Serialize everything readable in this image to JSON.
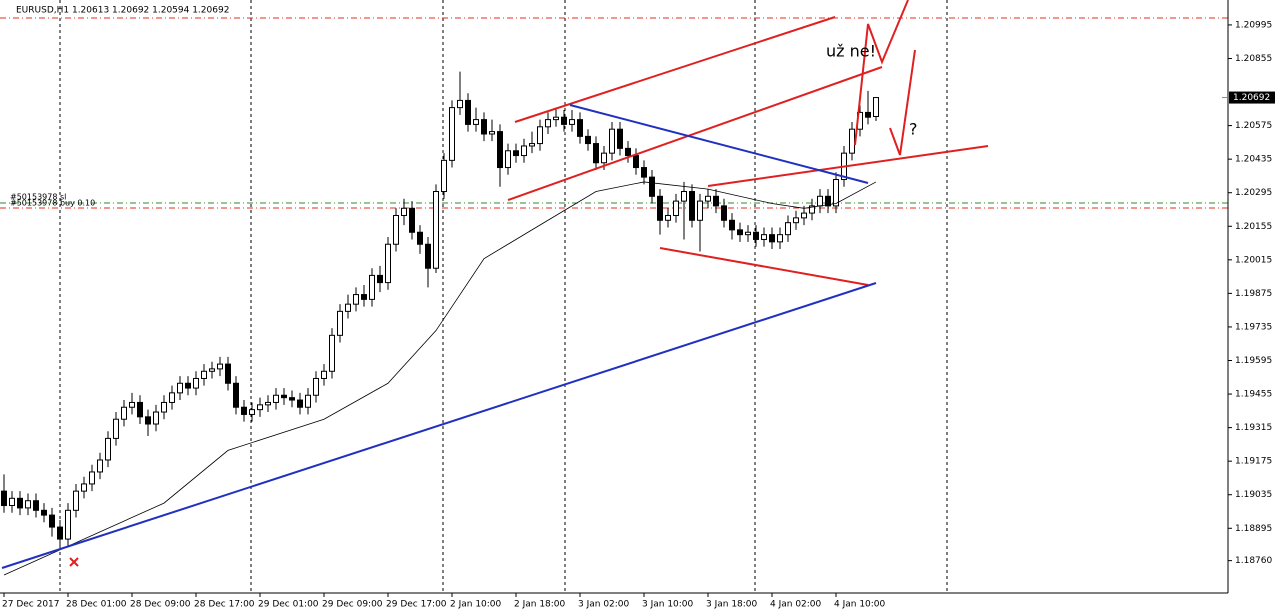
{
  "chart_data": {
    "type": "candlestick",
    "title": "EURUSD,H1  1.20613 1.20692 1.20594 1.20692",
    "categories": [
      "27 Dec 2017",
      null,
      null,
      null,
      null,
      null,
      null,
      null,
      "28 Dec 01:00",
      null,
      null,
      null,
      null,
      null,
      null,
      null,
      "28 Dec 09:00",
      null,
      null,
      null,
      null,
      null,
      null,
      null,
      "28 Dec 17:00",
      null,
      null,
      null,
      null,
      null,
      null,
      null,
      "29 Dec 01:00",
      null,
      null,
      null,
      null,
      null,
      null,
      null,
      "29 Dec 09:00",
      null,
      null,
      null,
      null,
      null,
      null,
      null,
      "29 Dec 17:00",
      null,
      null,
      null,
      null,
      null,
      null,
      null,
      "2 Jan 10:00",
      null,
      null,
      null,
      null,
      null,
      null,
      null,
      "2 Jan 18:00",
      null,
      null,
      null,
      null,
      null,
      null,
      null,
      "3 Jan 02:00",
      null,
      null,
      null,
      null,
      null,
      null,
      null,
      "3 Jan 10:00",
      null,
      null,
      null,
      null,
      null,
      null,
      null,
      "3 Jan 18:00",
      null,
      null,
      null,
      null,
      null,
      null,
      null,
      "4 Jan 02:00",
      null,
      null,
      null,
      null,
      null,
      null,
      null,
      "4 Jan 10:00",
      null,
      null,
      null,
      null,
      null
    ],
    "open": [
      1.1905,
      1.1899,
      1.1902,
      1.1898,
      1.1901,
      1.1897,
      1.1895,
      1.189,
      1.1885,
      1.1897,
      1.1905,
      1.1908,
      1.1913,
      1.1918,
      1.1927,
      1.1935,
      1.194,
      1.1942,
      1.1936,
      1.1933,
      1.1938,
      1.1942,
      1.1946,
      1.195,
      1.1948,
      1.1952,
      1.1955,
      1.1956,
      1.1958,
      1.195,
      1.194,
      1.1937,
      1.1939,
      1.1941,
      1.1942,
      1.1945,
      1.1944,
      1.1943,
      1.194,
      1.1945,
      1.1952,
      1.1955,
      1.197,
      1.198,
      1.1983,
      1.1987,
      1.1985,
      1.1995,
      1.1992,
      1.2008,
      1.202,
      1.2023,
      1.2013,
      1.2008,
      1.1998,
      1.203,
      1.2043,
      1.2065,
      1.2068,
      1.2058,
      1.206,
      1.2054,
      1.2055,
      1.204,
      1.2047,
      1.2045,
      1.2049,
      1.205,
      1.2057,
      1.206,
      1.2061,
      1.2058,
      1.206,
      1.2053,
      1.205,
      1.2042,
      1.2046,
      1.2056,
      1.2048,
      1.2045,
      1.204,
      1.2036,
      1.2028,
      1.2018,
      1.202,
      1.2026,
      1.203,
      1.2018,
      1.2026,
      1.2028,
      1.2024,
      1.2018,
      1.2014,
      1.2012,
      1.2013,
      1.201,
      1.2012,
      1.2009,
      1.2012,
      1.2017,
      1.2019,
      1.2021,
      1.2024,
      1.2028,
      1.2024,
      1.2035,
      1.2046,
      1.2056,
      1.2063,
      1.20613
    ],
    "high": [
      1.1912,
      1.1905,
      1.1905,
      1.1904,
      1.1904,
      1.19,
      1.1898,
      1.1893,
      1.19,
      1.1908,
      1.1911,
      1.1916,
      1.1921,
      1.193,
      1.1938,
      1.1943,
      1.1946,
      1.1945,
      1.1939,
      1.1941,
      1.1945,
      1.1949,
      1.1953,
      1.1953,
      1.1955,
      1.1958,
      1.1959,
      1.1961,
      1.1961,
      1.1953,
      1.1943,
      1.1942,
      1.1944,
      1.1945,
      1.1948,
      1.1948,
      1.1947,
      1.1946,
      1.1948,
      1.1955,
      1.1958,
      1.1973,
      1.1983,
      1.1987,
      1.199,
      1.1991,
      1.1998,
      1.1999,
      1.2011,
      1.2023,
      1.2027,
      1.2026,
      1.2016,
      1.2011,
      1.2033,
      1.2046,
      1.2068,
      1.208,
      1.2071,
      1.2065,
      1.2063,
      1.206,
      1.2058,
      1.205,
      1.205,
      1.2052,
      1.2055,
      1.206,
      1.2063,
      1.2065,
      1.2064,
      1.2064,
      1.2063,
      1.2056,
      1.2053,
      1.2049,
      1.2059,
      1.2059,
      1.2051,
      1.2048,
      1.2043,
      1.2039,
      1.2031,
      1.2023,
      1.2029,
      1.2034,
      1.2033,
      1.2029,
      1.2031,
      1.2031,
      1.2027,
      1.2021,
      1.2017,
      1.2016,
      1.2016,
      1.2015,
      1.2015,
      1.2015,
      1.202,
      1.2022,
      1.2024,
      1.2027,
      1.2031,
      1.2031,
      1.2038,
      1.2049,
      1.2059,
      1.2066,
      1.2072,
      1.20692
    ],
    "low": [
      1.1896,
      1.1896,
      1.1895,
      1.1895,
      1.1894,
      1.1892,
      1.1886,
      1.1881,
      1.1882,
      1.1894,
      1.1902,
      1.1905,
      1.191,
      1.1915,
      1.1924,
      1.1932,
      1.1937,
      1.1933,
      1.1928,
      1.193,
      1.1935,
      1.1939,
      1.1943,
      1.1945,
      1.1945,
      1.1949,
      1.1952,
      1.1953,
      1.1947,
      1.1937,
      1.1934,
      1.1934,
      1.1936,
      1.1938,
      1.1939,
      1.1941,
      1.194,
      1.1937,
      1.1937,
      1.1942,
      1.1949,
      1.1952,
      1.1967,
      1.1977,
      1.198,
      1.1982,
      1.1982,
      1.1988,
      1.1989,
      1.2005,
      1.2016,
      1.201,
      1.2004,
      1.199,
      1.1996,
      1.2027,
      1.204,
      1.2062,
      1.2055,
      1.2055,
      1.2051,
      1.2051,
      1.2032,
      1.2037,
      1.2042,
      1.2042,
      1.2046,
      1.2047,
      1.2054,
      1.2057,
      1.2055,
      1.2055,
      1.205,
      1.2047,
      1.2039,
      1.2039,
      1.2043,
      1.2045,
      1.2042,
      1.2037,
      1.2033,
      1.2025,
      1.2012,
      1.2015,
      1.2017,
      1.201,
      1.2015,
      1.2005,
      1.2023,
      1.2021,
      1.2015,
      1.201,
      1.2009,
      1.2009,
      1.2007,
      1.2007,
      1.2006,
      1.2006,
      1.2009,
      1.2014,
      1.2016,
      1.2018,
      1.2021,
      1.2021,
      1.2021,
      1.2032,
      1.2043,
      1.2053,
      1.2058,
      1.20594
    ],
    "close": [
      1.1899,
      1.1902,
      1.1898,
      1.1901,
      1.1897,
      1.1895,
      1.189,
      1.1885,
      1.1897,
      1.1905,
      1.1908,
      1.1913,
      1.1918,
      1.1927,
      1.1935,
      1.194,
      1.1942,
      1.1936,
      1.1933,
      1.1938,
      1.1942,
      1.1946,
      1.195,
      1.1948,
      1.1952,
      1.1955,
      1.1956,
      1.1958,
      1.195,
      1.194,
      1.1937,
      1.1939,
      1.1941,
      1.1942,
      1.1945,
      1.1944,
      1.1943,
      1.194,
      1.1945,
      1.1952,
      1.1955,
      1.197,
      1.198,
      1.1983,
      1.1987,
      1.1985,
      1.1995,
      1.1992,
      1.2008,
      1.202,
      1.2023,
      1.2013,
      1.2008,
      1.1998,
      1.203,
      1.2043,
      1.2065,
      1.2068,
      1.2058,
      1.206,
      1.2054,
      1.2055,
      1.204,
      1.2047,
      1.2045,
      1.2049,
      1.205,
      1.2057,
      1.206,
      1.2061,
      1.2058,
      1.206,
      1.2053,
      1.205,
      1.2042,
      1.2046,
      1.2056,
      1.2048,
      1.2045,
      1.204,
      1.2036,
      1.2028,
      1.2018,
      1.202,
      1.2026,
      1.203,
      1.2018,
      1.2026,
      1.2028,
      1.2024,
      1.2018,
      1.2014,
      1.2012,
      1.2013,
      1.201,
      1.2012,
      1.2009,
      1.2012,
      1.2017,
      1.2019,
      1.2021,
      1.2024,
      1.2028,
      1.2024,
      1.2035,
      1.2046,
      1.2056,
      1.2063,
      1.2061,
      1.20692
    ],
    "color": "#000000",
    "moving_average": {
      "color": "#000000",
      "x": [
        0,
        12,
        20,
        28,
        40,
        48,
        54,
        60,
        68,
        74,
        80,
        88,
        96,
        100,
        104,
        109
      ],
      "values": [
        1.187,
        1.1888,
        1.19,
        1.1922,
        1.1935,
        1.195,
        1.1972,
        1.2002,
        1.2018,
        1.203,
        1.2034,
        1.2031,
        1.2025,
        1.2023,
        1.2025,
        1.2034
      ]
    },
    "ylim": [
      1.18625,
      1.21099
    ],
    "yticks": [
      1.20995,
      1.20855,
      1.20575,
      1.20435,
      1.20295,
      1.20155,
      1.20015,
      1.19875,
      1.19735,
      1.19595,
      1.19455,
      1.19315,
      1.19175,
      1.19035,
      1.18895,
      {
        "value": 1.1876,
        "label": "1.18760"
      }
    ],
    "current_price": 1.20692,
    "order_labels": [
      "#50153978 sl",
      "#50153978 buy 0.10"
    ],
    "annotations": [
      "už ne!",
      "?"
    ]
  }
}
